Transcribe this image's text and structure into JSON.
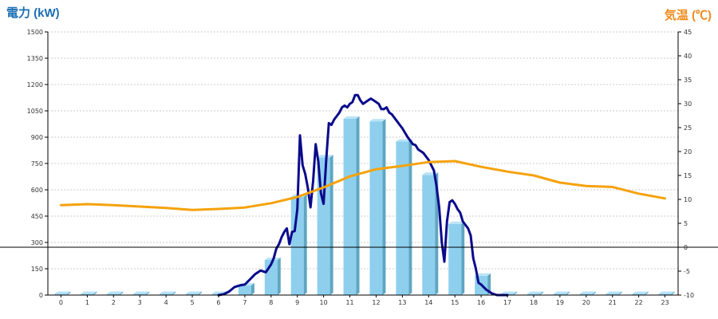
{
  "chart_data": {
    "type": "bar",
    "title_left": "電力 (kW)",
    "title_right": "気温 (℃)",
    "colors": {
      "title_left": "#1c6fb5",
      "title_right": "#f08a1c",
      "bar_front": "#8ecfee",
      "bar_side": "#5fa6c2",
      "bar_top": "#b9e3f6",
      "power_line": "#0a0a8c",
      "temp_line": "#f5a20c",
      "grid": "#bbbbbb"
    },
    "categories": [
      "0",
      "1",
      "2",
      "3",
      "4",
      "5",
      "6",
      "7",
      "8",
      "9",
      "10",
      "11",
      "12",
      "13",
      "14",
      "15",
      "16",
      "17",
      "18",
      "19",
      "20",
      "21",
      "22",
      "23"
    ],
    "y_left": {
      "min": 0,
      "max": 1500,
      "ticks": [
        "0",
        "150",
        "300",
        "450",
        "600",
        "750",
        "900",
        "1050",
        "1200",
        "1350",
        "1500"
      ]
    },
    "y_right": {
      "min": -10,
      "max": 45,
      "ticks": [
        "-10",
        "-5",
        "0",
        "5",
        "10",
        "15",
        "20",
        "25",
        "30",
        "35",
        "40",
        "45"
      ]
    },
    "grid": true,
    "series": [
      {
        "kind": "bar",
        "axis": "left",
        "values": [
          0,
          0,
          0,
          0,
          0,
          0,
          0,
          55,
          200,
          560,
          785,
          1005,
          990,
          875,
          685,
          405,
          110,
          0,
          0,
          0,
          0,
          0,
          0,
          0
        ]
      },
      {
        "kind": "line",
        "axis": "left",
        "x": [
          6.0,
          6.2,
          6.4,
          6.6,
          6.8,
          7.0,
          7.2,
          7.4,
          7.6,
          7.8,
          8.0,
          8.1,
          8.2,
          8.3,
          8.4,
          8.5,
          8.6,
          8.7,
          8.8,
          8.9,
          9.0,
          9.1,
          9.2,
          9.3,
          9.4,
          9.5,
          9.6,
          9.7,
          9.8,
          9.9,
          10.0,
          10.1,
          10.2,
          10.3,
          10.4,
          10.5,
          10.6,
          10.7,
          10.8,
          10.9,
          11.0,
          11.1,
          11.2,
          11.3,
          11.4,
          11.5,
          11.6,
          11.7,
          11.8,
          11.9,
          12.0,
          12.1,
          12.2,
          12.3,
          12.4,
          12.5,
          12.6,
          12.7,
          12.8,
          12.9,
          13.0,
          13.2,
          13.4,
          13.5,
          13.6,
          13.8,
          14.0,
          14.2,
          14.3,
          14.4,
          14.5,
          14.6,
          14.7,
          14.8,
          14.9,
          15.0,
          15.1,
          15.2,
          15.3,
          15.4,
          15.5,
          15.6,
          15.7,
          15.8,
          15.9,
          16.0,
          16.2,
          16.4,
          16.6,
          16.8,
          17.0
        ],
        "values": [
          0,
          5,
          20,
          45,
          55,
          60,
          90,
          120,
          140,
          130,
          175,
          210,
          265,
          290,
          330,
          360,
          380,
          290,
          360,
          365,
          490,
          910,
          740,
          690,
          610,
          500,
          650,
          860,
          760,
          580,
          520,
          770,
          980,
          970,
          1000,
          1020,
          1040,
          1070,
          1080,
          1070,
          1090,
          1100,
          1140,
          1140,
          1110,
          1090,
          1100,
          1110,
          1120,
          1110,
          1100,
          1090,
          1060,
          1060,
          1070,
          1040,
          1030,
          1010,
          990,
          970,
          950,
          900,
          860,
          855,
          830,
          810,
          770,
          710,
          620,
          500,
          300,
          190,
          420,
          530,
          540,
          520,
          490,
          470,
          420,
          400,
          380,
          340,
          210,
          150,
          70,
          60,
          30,
          10,
          0,
          0,
          0
        ],
        "name": ""
      },
      {
        "kind": "line",
        "axis": "right",
        "x": [
          0,
          1,
          2,
          3,
          4,
          5,
          6,
          7,
          8,
          9,
          10,
          11,
          12,
          13,
          14,
          15,
          16,
          17,
          18,
          19,
          20,
          21,
          22,
          23
        ],
        "values": [
          8.8,
          9.0,
          8.8,
          8.5,
          8.2,
          7.8,
          8.0,
          8.3,
          9.2,
          10.5,
          12.5,
          14.8,
          16.3,
          17.0,
          17.8,
          18.0,
          16.8,
          15.8,
          15.0,
          13.5,
          12.8,
          12.6,
          11.2,
          10.2
        ],
        "name": ""
      }
    ]
  }
}
